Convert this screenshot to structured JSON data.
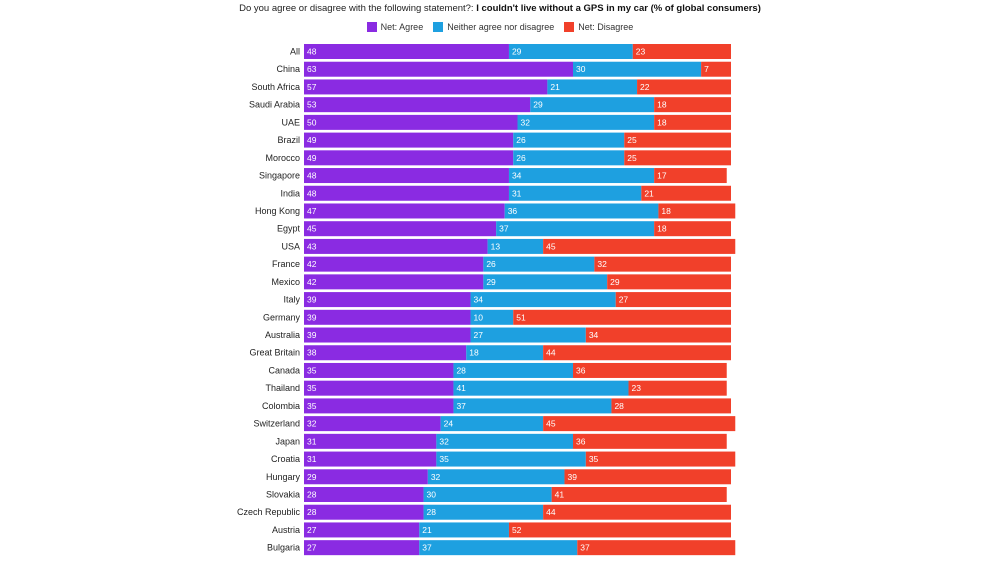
{
  "chart_data": {
    "type": "bar",
    "orientation": "horizontal",
    "stacked": true,
    "normalized": true,
    "title_prefix": "Do you agree or disagree with the following statement?: ",
    "title_bold": "I couldn't live without a GPS in my car (% of global consumers)",
    "legend": {
      "agree": "Net: Agree",
      "neutral": "Neither agree nor disagree",
      "disagree": "Net: Disagree"
    },
    "colors": {
      "agree": "#8a2be2",
      "neutral": "#1ea0e0",
      "disagree": "#f1402a"
    },
    "categories": [
      "All",
      "China",
      "South Africa",
      "Saudi Arabia",
      "UAE",
      "Brazil",
      "Morocco",
      "Singapore",
      "India",
      "Hong Kong",
      "Egypt",
      "USA",
      "France",
      "Mexico",
      "Italy",
      "Germany",
      "Australia",
      "Great Britain",
      "Canada",
      "Thailand",
      "Colombia",
      "Switzerland",
      "Japan",
      "Croatia",
      "Hungary",
      "Slovakia",
      "Czech Republic",
      "Austria",
      "Bulgaria"
    ],
    "series": [
      {
        "name": "Net: Agree",
        "values": [
          48,
          63,
          57,
          53,
          50,
          49,
          49,
          48,
          48,
          47,
          45,
          43,
          42,
          42,
          39,
          39,
          39,
          38,
          35,
          35,
          35,
          32,
          31,
          31,
          29,
          28,
          28,
          27,
          27
        ]
      },
      {
        "name": "Neither agree nor disagree",
        "values": [
          29,
          30,
          21,
          29,
          32,
          26,
          26,
          34,
          31,
          36,
          37,
          13,
          26,
          29,
          34,
          10,
          27,
          18,
          28,
          41,
          37,
          24,
          32,
          35,
          32,
          30,
          28,
          21,
          37
        ]
      },
      {
        "name": "Net: Disagree",
        "values": [
          23,
          7,
          22,
          18,
          18,
          25,
          25,
          17,
          21,
          18,
          18,
          45,
          32,
          29,
          27,
          51,
          34,
          44,
          36,
          23,
          28,
          45,
          36,
          35,
          39,
          41,
          44,
          52,
          37
        ]
      }
    ],
    "xlim": [
      0,
      100
    ]
  }
}
